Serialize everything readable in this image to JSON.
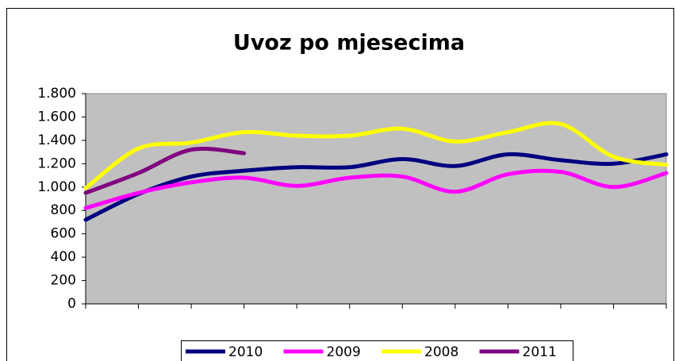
{
  "chart_data": {
    "type": "line",
    "title": "Uvoz po mjesecima",
    "categories": [
      null,
      null,
      null,
      null,
      null,
      null,
      null,
      null,
      null,
      null,
      null,
      null
    ],
    "series": [
      {
        "name": "2010",
        "color": "#000080",
        "values": [
          720,
          940,
          1090,
          1140,
          1170,
          1170,
          1240,
          1180,
          1280,
          1230,
          1200,
          1280
        ]
      },
      {
        "name": "2009",
        "color": "#ff00ff",
        "values": [
          820,
          950,
          1040,
          1080,
          1010,
          1080,
          1090,
          960,
          1110,
          1130,
          1000,
          1120
        ]
      },
      {
        "name": "2008",
        "color": "#ffff00",
        "values": [
          990,
          1330,
          1380,
          1470,
          1440,
          1440,
          1500,
          1390,
          1470,
          1540,
          1260,
          1190
        ]
      },
      {
        "name": "2011",
        "color": "#800080",
        "values": [
          950,
          1120,
          1320,
          1290,
          null,
          null,
          null,
          null,
          null,
          null,
          null,
          null
        ]
      }
    ],
    "ylim": [
      0,
      1800
    ],
    "yticks": [
      0,
      200,
      400,
      600,
      800,
      {
        "value": 1000,
        "label": "1.000"
      },
      {
        "value": 1200,
        "label": "1.200"
      },
      {
        "value": 1400,
        "label": "1.400"
      },
      {
        "value": 1600,
        "label": "1.600"
      },
      {
        "value": 1800,
        "label": "1.800"
      }
    ],
    "legend": "bottom"
  }
}
